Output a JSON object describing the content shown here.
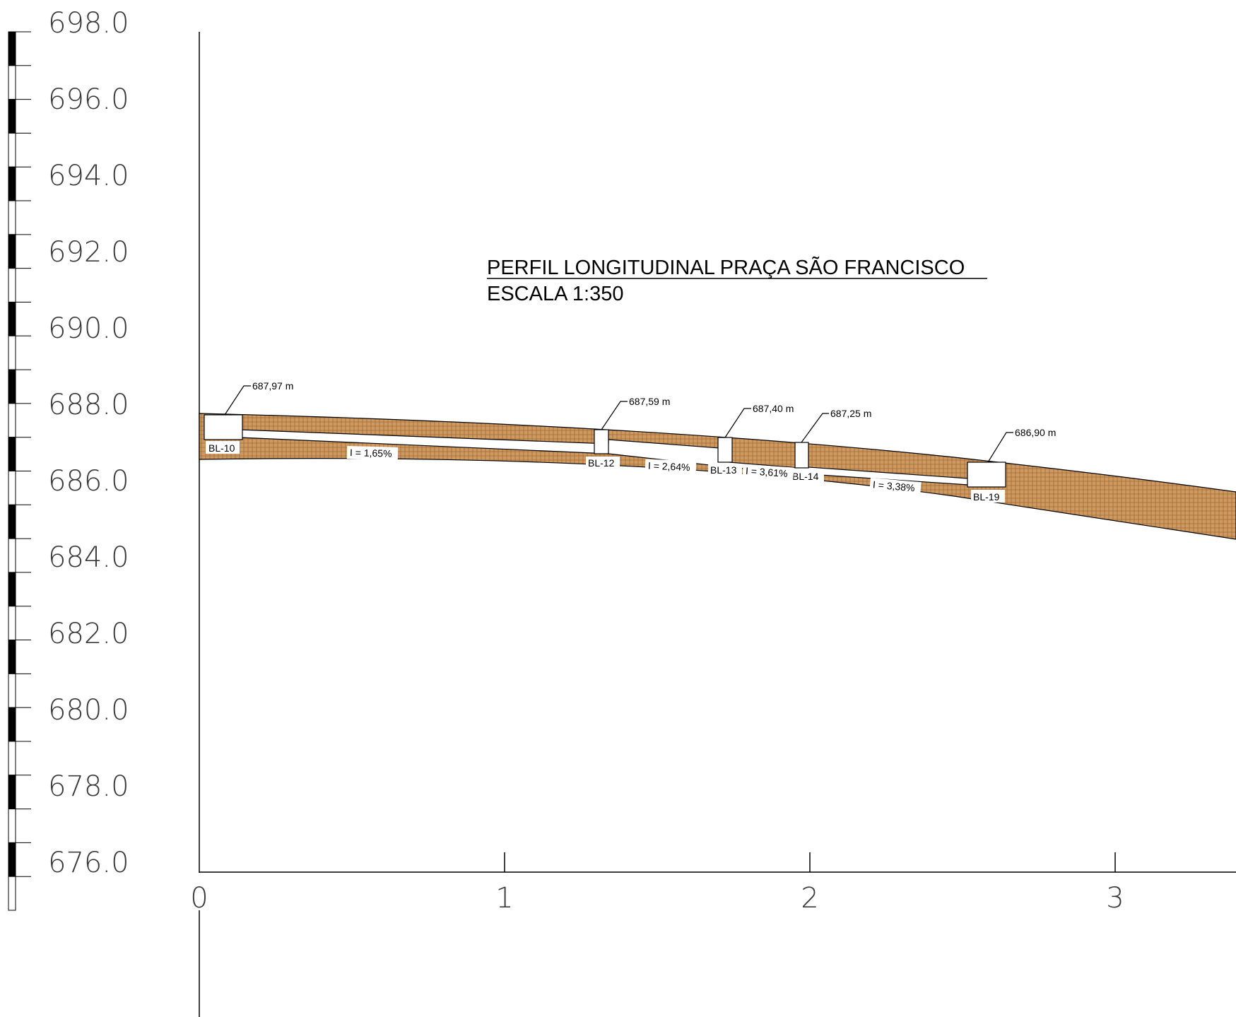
{
  "drawing": {
    "title": "PERFIL LONGITUDINAL PRAÇA SÃO FRANCISCO",
    "scale": "ESCALA 1:350"
  },
  "elevation_ruler": {
    "labels": [
      "698.0",
      "696.0",
      "694.0",
      "692.0",
      "690.0",
      "688.0",
      "686.0",
      "684.0",
      "682.0",
      "680.0",
      "678.0",
      "676.0"
    ],
    "min": 676.0,
    "max": 698.0
  },
  "distance_axis": {
    "labels": [
      "0",
      "1",
      "2",
      "3"
    ]
  },
  "boxes": [
    {
      "id": "BL-10",
      "elevation_label": "687,97 m"
    },
    {
      "id": "BL-12",
      "elevation_label": "687,59 m"
    },
    {
      "id": "BL-13",
      "elevation_label": "687,40 m"
    },
    {
      "id": "BL-14",
      "elevation_label": "687,25 m"
    },
    {
      "id": "BL-19",
      "elevation_label": "686,90 m"
    }
  ],
  "slopes": [
    "I = 1,65%",
    "I = 2,64%",
    "I = 3,61%",
    "I = 3,38%"
  ],
  "colors": {
    "soil_fill": "#cf9a62",
    "soil_hatch": "#a06a36",
    "line": "#000000",
    "ruler_dark": "#000000"
  }
}
